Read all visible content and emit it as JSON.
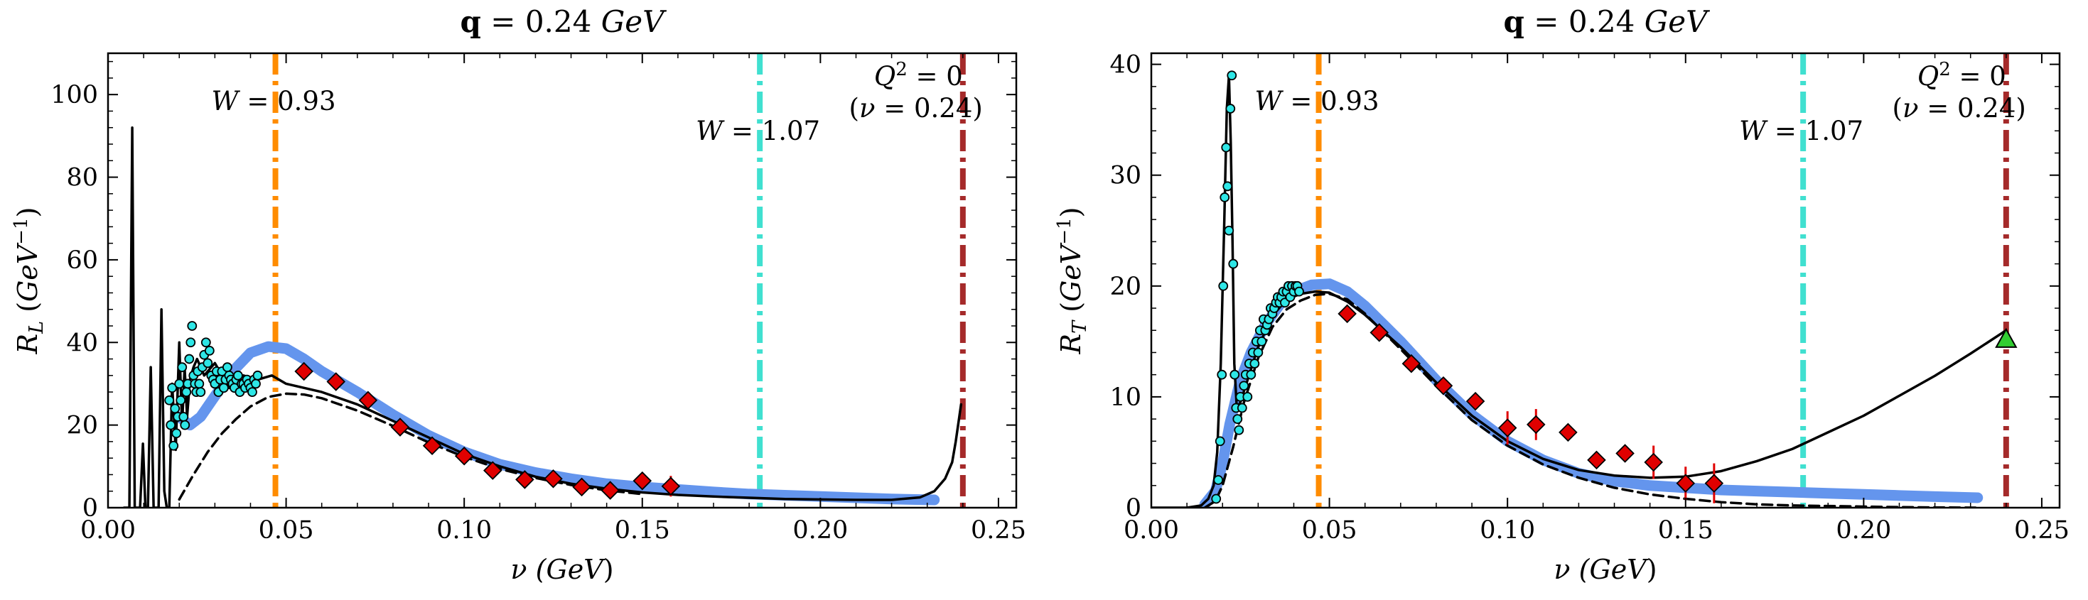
{
  "chart_data": [
    {
      "type": "line",
      "title": "q = 0.24 GeV",
      "title_parts": {
        "bold": "q",
        "rest": " = 0.24 ",
        "unit": "GeV"
      },
      "xlabel": "ν (GeV)",
      "ylabel": "R_L (GeV^-1)",
      "xlim": [
        0.0,
        0.255
      ],
      "ylim": [
        0,
        110
      ],
      "xticks": [
        0.0,
        0.05,
        0.1,
        0.15,
        0.2,
        0.25
      ],
      "xtick_labels": [
        "0.00",
        "0.05",
        "0.10",
        "0.15",
        "0.20",
        "0.25"
      ],
      "yticks": [
        0,
        20,
        40,
        60,
        80,
        100
      ],
      "ytick_labels": [
        "0",
        "20",
        "40",
        "60",
        "80",
        "100"
      ],
      "vlines": [
        {
          "x": 0.047,
          "color": "#ff8c00",
          "label": "W = 0.93"
        },
        {
          "x": 0.183,
          "color": "#40e0d0",
          "label": "W = 1.07"
        },
        {
          "x": 0.24,
          "color": "#a52a2a",
          "label_lines": [
            "Q² = 0",
            "(ν = 0.24)"
          ]
        }
      ],
      "series": [
        {
          "style": "thick-blue",
          "color": "#6495ed",
          "x": [
            0.02,
            0.023,
            0.026,
            0.03,
            0.035,
            0.04,
            0.045,
            0.05,
            0.055,
            0.06,
            0.07,
            0.08,
            0.09,
            0.1,
            0.11,
            0.12,
            0.13,
            0.14,
            0.15,
            0.16,
            0.17,
            0.18,
            0.19,
            0.2,
            0.21,
            0.22,
            0.232
          ],
          "y": [
            22,
            20,
            22,
            27,
            33,
            37.5,
            39,
            38.5,
            36,
            33,
            28,
            22.5,
            17.5,
            13.5,
            10.5,
            8.5,
            7,
            5.8,
            5,
            4.4,
            3.8,
            3.3,
            3,
            2.7,
            2.4,
            2.1,
            1.9
          ]
        },
        {
          "style": "solid-black",
          "color": "#000000",
          "x": [
            0.0045,
            0.006,
            0.0068,
            0.0075,
            0.009,
            0.0098,
            0.0105,
            0.0112,
            0.012,
            0.0128,
            0.0135,
            0.0142,
            0.015,
            0.0158,
            0.0165,
            0.0172,
            0.018,
            0.019,
            0.02,
            0.0208,
            0.0215,
            0.0222,
            0.023,
            0.024,
            0.025,
            0.027,
            0.03,
            0.034,
            0.038,
            0.042,
            0.046,
            0.05,
            0.06,
            0.07,
            0.08,
            0.09,
            0.1,
            0.11,
            0.12,
            0.13,
            0.14,
            0.15,
            0.16,
            0.17,
            0.18,
            0.19,
            0.2,
            0.21,
            0.22,
            0.228,
            0.232,
            0.235,
            0.237,
            0.238,
            0.239,
            0.2395
          ],
          "y": [
            0,
            0,
            92,
            0,
            0,
            15.5,
            0,
            0,
            34,
            0,
            0,
            0,
            48,
            4,
            0,
            0,
            30,
            14,
            40,
            20,
            34,
            22,
            31,
            34,
            36,
            32,
            35,
            29,
            32,
            31,
            32,
            30,
            28,
            25,
            21,
            17,
            13,
            10,
            7.5,
            5.8,
            4.6,
            3.7,
            3.1,
            2.7,
            2.4,
            2.1,
            2.0,
            1.9,
            1.9,
            2.5,
            4,
            7,
            11,
            16,
            22,
            25
          ]
        },
        {
          "style": "dashed-black",
          "color": "#000000",
          "x": [
            0.02,
            0.024,
            0.028,
            0.032,
            0.036,
            0.04,
            0.045,
            0.05,
            0.055,
            0.06,
            0.07,
            0.08,
            0.09,
            0.1,
            0.11,
            0.12,
            0.13,
            0.14,
            0.15
          ],
          "y": [
            2,
            8,
            13.5,
            18,
            21.5,
            24.5,
            26.8,
            27.6,
            27.4,
            26.5,
            23.5,
            19.8,
            15.8,
            12.3,
            9.4,
            7.2,
            5.5,
            4.2,
            3.3
          ]
        }
      ],
      "markers_cyan": {
        "color": "#2ee6e6",
        "x": [
          0.0172,
          0.0176,
          0.018,
          0.0184,
          0.0188,
          0.0192,
          0.0196,
          0.02,
          0.0204,
          0.0208,
          0.0212,
          0.0216,
          0.022,
          0.0224,
          0.0228,
          0.0232,
          0.0236,
          0.024,
          0.0244,
          0.0248,
          0.0252,
          0.0256,
          0.026,
          0.0265,
          0.027,
          0.0275,
          0.028,
          0.0285,
          0.029,
          0.0295,
          0.03,
          0.0305,
          0.031,
          0.0315,
          0.032,
          0.0325,
          0.033,
          0.0335,
          0.034,
          0.0345,
          0.035,
          0.0355,
          0.036,
          0.0365,
          0.037,
          0.0375,
          0.038,
          0.0385,
          0.039,
          0.0395,
          0.04,
          0.0405,
          0.041,
          0.0415,
          0.042
        ],
        "y": [
          26,
          20,
          29,
          15,
          24,
          18,
          22,
          30,
          26,
          34,
          22,
          20,
          28,
          30,
          36,
          40,
          44,
          32,
          30,
          28,
          33,
          30,
          28,
          34,
          37,
          40,
          35,
          38,
          32,
          31,
          30,
          33,
          28,
          31,
          33,
          29,
          31,
          34,
          32,
          31,
          30,
          29,
          31,
          32,
          28,
          30,
          30,
          29,
          31,
          30,
          29,
          28,
          31,
          30,
          32
        ]
      },
      "markers_red": {
        "color": "#e00000",
        "x": [
          0.055,
          0.064,
          0.073,
          0.082,
          0.091,
          0.1,
          0.108,
          0.117,
          0.125,
          0.133,
          0.141,
          0.15,
          0.158
        ],
        "y": [
          33,
          30.5,
          26,
          19.5,
          15,
          12.5,
          9,
          6.8,
          7,
          5,
          4.2,
          6.5,
          5.2
        ],
        "err": [
          0,
          0,
          0,
          0,
          0,
          0,
          0,
          0,
          0,
          0,
          0,
          1.5,
          2.5
        ]
      }
    },
    {
      "type": "line",
      "title": "q = 0.24 GeV",
      "title_parts": {
        "bold": "q",
        "rest": " = 0.24 ",
        "unit": "GeV"
      },
      "xlabel": "ν (GeV)",
      "ylabel": "R_T (GeV^-1)",
      "xlim": [
        0.0,
        0.255
      ],
      "ylim": [
        0,
        41
      ],
      "xticks": [
        0.0,
        0.05,
        0.1,
        0.15,
        0.2,
        0.25
      ],
      "xtick_labels": [
        "0.00",
        "0.05",
        "0.10",
        "0.15",
        "0.20",
        "0.25"
      ],
      "yticks": [
        0,
        10,
        20,
        30,
        40
      ],
      "ytick_labels": [
        "0",
        "10",
        "20",
        "30",
        "40"
      ],
      "vlines": [
        {
          "x": 0.047,
          "color": "#ff8c00",
          "label": "W = 0.93"
        },
        {
          "x": 0.183,
          "color": "#40e0d0",
          "label": "W = 1.07"
        },
        {
          "x": 0.24,
          "color": "#a52a2a",
          "label_lines": [
            "Q² = 0",
            "(ν = 0.24)"
          ]
        }
      ],
      "series": [
        {
          "style": "thick-blue",
          "color": "#6495ed",
          "x": [
            0.015,
            0.018,
            0.02,
            0.022,
            0.025,
            0.028,
            0.032,
            0.036,
            0.04,
            0.045,
            0.05,
            0.055,
            0.06,
            0.07,
            0.08,
            0.09,
            0.1,
            0.11,
            0.12,
            0.13,
            0.14,
            0.15,
            0.16,
            0.17,
            0.18,
            0.19,
            0.2,
            0.21,
            0.22,
            0.232
          ],
          "y": [
            0.3,
            1.5,
            4,
            7.5,
            11.5,
            14,
            16.5,
            18.3,
            19.5,
            20.1,
            20.2,
            19.5,
            18.2,
            15,
            11.5,
            8.4,
            6,
            4.3,
            3.1,
            2.4,
            2,
            1.8,
            1.6,
            1.5,
            1.4,
            1.3,
            1.2,
            1.1,
            1.0,
            0.9
          ]
        },
        {
          "style": "solid-black",
          "color": "#000000",
          "x": [
            0.0,
            0.01,
            0.014,
            0.016,
            0.0175,
            0.0185,
            0.0195,
            0.0205,
            0.0212,
            0.0218,
            0.0223,
            0.0228,
            0.0233,
            0.024,
            0.025,
            0.027,
            0.03,
            0.034,
            0.038,
            0.042,
            0.046,
            0.05,
            0.055,
            0.06,
            0.07,
            0.08,
            0.09,
            0.1,
            0.11,
            0.12,
            0.13,
            0.14,
            0.15,
            0.16,
            0.17,
            0.18,
            0.19,
            0.2,
            0.21,
            0.22,
            0.23,
            0.24
          ],
          "y": [
            0,
            0,
            0.2,
            0.8,
            2,
            5,
            13,
            26,
            36,
            39,
            33,
            24,
            13,
            9,
            9.5,
            11.5,
            14.5,
            17.3,
            18.8,
            19.3,
            19.5,
            19.4,
            18.6,
            17.4,
            14.5,
            11.3,
            8.3,
            6,
            4.4,
            3.4,
            2.9,
            2.7,
            2.8,
            3.3,
            4.2,
            5.3,
            6.8,
            8.3,
            10.1,
            11.9,
            13.9,
            16
          ]
        },
        {
          "style": "dashed-black",
          "color": "#000000",
          "x": [
            0.015,
            0.018,
            0.02,
            0.023,
            0.026,
            0.03,
            0.034,
            0.038,
            0.042,
            0.046,
            0.05,
            0.055,
            0.06,
            0.07,
            0.08,
            0.09,
            0.1,
            0.11,
            0.12,
            0.13,
            0.14,
            0.15,
            0.16,
            0.17,
            0.18,
            0.19,
            0.2,
            0.21,
            0.22,
            0.232
          ],
          "y": [
            0,
            0.6,
            2,
            5.5,
            9.5,
            13.5,
            16.3,
            17.9,
            18.7,
            19.2,
            19.3,
            18.8,
            17.5,
            14.3,
            11,
            7.9,
            5.6,
            3.9,
            2.7,
            1.8,
            1.2,
            0.8,
            0.5,
            0.3,
            0.2,
            0.15,
            0.1,
            0.05,
            0.02,
            0
          ]
        }
      ],
      "markers_cyan": {
        "color": "#2ee6e6",
        "x": [
          0.0182,
          0.0188,
          0.0193,
          0.0198,
          0.0202,
          0.0206,
          0.021,
          0.0214,
          0.0218,
          0.0222,
          0.0226,
          0.023,
          0.0234,
          0.0238,
          0.0242,
          0.0246,
          0.025,
          0.0255,
          0.026,
          0.0265,
          0.027,
          0.0275,
          0.028,
          0.0285,
          0.029,
          0.0295,
          0.03,
          0.0305,
          0.031,
          0.0315,
          0.032,
          0.0325,
          0.033,
          0.0335,
          0.034,
          0.0345,
          0.035,
          0.0355,
          0.036,
          0.0365,
          0.037,
          0.0375,
          0.038,
          0.0385,
          0.039,
          0.0395,
          0.04,
          0.0405,
          0.041,
          0.0415
        ],
        "y": [
          0.8,
          2.5,
          6,
          12,
          20,
          28,
          32.5,
          29,
          25,
          36,
          39,
          22,
          12,
          9,
          8,
          7,
          10,
          9,
          11,
          12,
          10,
          13,
          12,
          14,
          13,
          15,
          14,
          16,
          15,
          17,
          16,
          16.5,
          17,
          18,
          17.5,
          18,
          18.5,
          19,
          18.5,
          19,
          19.5,
          18.5,
          19.5,
          20,
          19,
          20,
          19.5,
          20,
          20,
          19.5
        ]
      },
      "markers_red": {
        "color": "#e00000",
        "x": [
          0.055,
          0.064,
          0.073,
          0.082,
          0.091,
          0.1,
          0.108,
          0.117,
          0.125,
          0.133,
          0.141,
          0.15,
          0.158
        ],
        "y": [
          17.5,
          15.8,
          13,
          11,
          9.6,
          7.2,
          7.5,
          6.8,
          4.3,
          4.9,
          4.1,
          2.2,
          2.2
        ],
        "err": [
          0,
          0,
          0,
          0,
          0,
          1.5,
          1.4,
          0,
          0,
          0,
          1.5,
          1.5,
          1.8
        ]
      },
      "markers_green": {
        "color": "#32cd32",
        "x": [
          0.24
        ],
        "y": [
          15.2
        ]
      }
    }
  ]
}
